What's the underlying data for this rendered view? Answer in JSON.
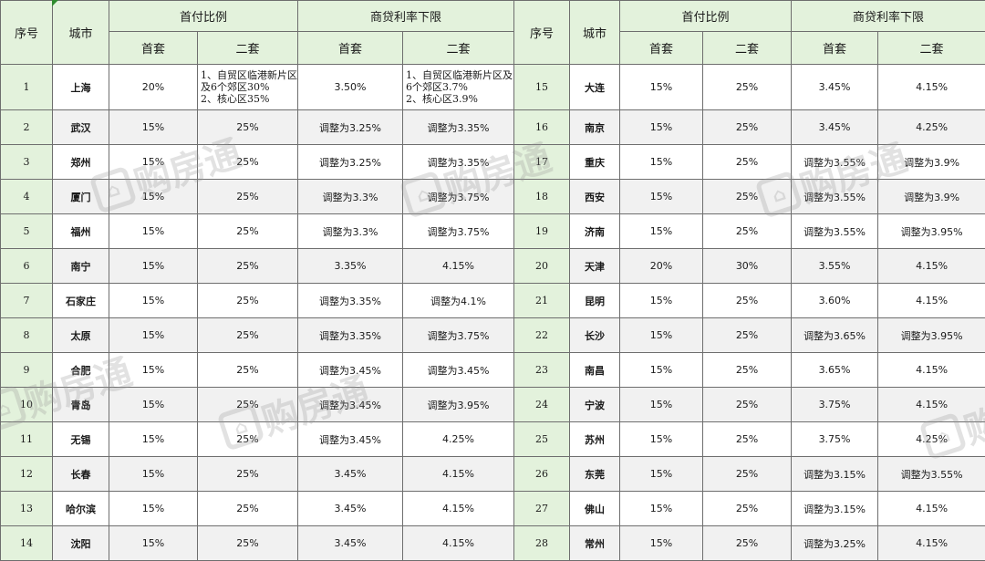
{
  "headers": {
    "seq": "序号",
    "city": "城市",
    "down_payment": "首付比例",
    "loan_rate": "商贷利率下限",
    "first": "首套",
    "second": "二套"
  },
  "left_rows": [
    {
      "n": "1",
      "city": "上海",
      "dp1": "20%",
      "dp2": "1、自贸区临港新片区及6个郊区30%\n2、核心区35%",
      "r1": "3.50%",
      "r2": "1、自贸区临港新片区及6个郊区3.7%\n2、核心区3.9%"
    },
    {
      "n": "2",
      "city": "武汉",
      "dp1": "15%",
      "dp2": "25%",
      "r1": "调整为3.25%",
      "r2": "调整为3.35%"
    },
    {
      "n": "3",
      "city": "郑州",
      "dp1": "15%",
      "dp2": "25%",
      "r1": "调整为3.25%",
      "r2": "调整为3.35%"
    },
    {
      "n": "4",
      "city": "厦门",
      "dp1": "15%",
      "dp2": "25%",
      "r1": "调整为3.3%",
      "r2": "调整为3.75%"
    },
    {
      "n": "5",
      "city": "福州",
      "dp1": "15%",
      "dp2": "25%",
      "r1": "调整为3.3%",
      "r2": "调整为3.75%"
    },
    {
      "n": "6",
      "city": "南宁",
      "dp1": "15%",
      "dp2": "25%",
      "r1": "3.35%",
      "r2": "4.15%"
    },
    {
      "n": "7",
      "city": "石家庄",
      "dp1": "15%",
      "dp2": "25%",
      "r1": "调整为3.35%",
      "r2": "调整为4.1%"
    },
    {
      "n": "8",
      "city": "太原",
      "dp1": "15%",
      "dp2": "25%",
      "r1": "调整为3.35%",
      "r2": "调整为3.75%"
    },
    {
      "n": "9",
      "city": "合肥",
      "dp1": "15%",
      "dp2": "25%",
      "r1": "调整为3.45%",
      "r2": "调整为3.45%"
    },
    {
      "n": "10",
      "city": "青岛",
      "dp1": "15%",
      "dp2": "25%",
      "r1": "调整为3.45%",
      "r2": "调整为3.95%"
    },
    {
      "n": "11",
      "city": "无锡",
      "dp1": "15%",
      "dp2": "25%",
      "r1": "调整为3.45%",
      "r2": "4.25%"
    },
    {
      "n": "12",
      "city": "长春",
      "dp1": "15%",
      "dp2": "25%",
      "r1": "3.45%",
      "r2": "4.15%"
    },
    {
      "n": "13",
      "city": "哈尔滨",
      "dp1": "15%",
      "dp2": "25%",
      "r1": "3.45%",
      "r2": "4.15%"
    },
    {
      "n": "14",
      "city": "沈阳",
      "dp1": "15%",
      "dp2": "25%",
      "r1": "3.45%",
      "r2": "4.15%"
    }
  ],
  "right_rows": [
    {
      "n": "15",
      "city": "大连",
      "dp1": "15%",
      "dp2": "25%",
      "r1": "3.45%",
      "r2": "4.15%"
    },
    {
      "n": "16",
      "city": "南京",
      "dp1": "15%",
      "dp2": "25%",
      "r1": "3.45%",
      "r2": "4.25%"
    },
    {
      "n": "17",
      "city": "重庆",
      "dp1": "15%",
      "dp2": "25%",
      "r1": "调整为3.55%",
      "r2": "调整为3.9%"
    },
    {
      "n": "18",
      "city": "西安",
      "dp1": "15%",
      "dp2": "25%",
      "r1": "调整为3.55%",
      "r2": "调整为3.9%"
    },
    {
      "n": "19",
      "city": "济南",
      "dp1": "15%",
      "dp2": "25%",
      "r1": "调整为3.55%",
      "r2": "调整为3.95%"
    },
    {
      "n": "20",
      "city": "天津",
      "dp1": "20%",
      "dp2": "30%",
      "r1": "3.55%",
      "r2": "4.15%"
    },
    {
      "n": "21",
      "city": "昆明",
      "dp1": "15%",
      "dp2": "25%",
      "r1": "3.60%",
      "r2": "4.15%"
    },
    {
      "n": "22",
      "city": "长沙",
      "dp1": "15%",
      "dp2": "25%",
      "r1": "调整为3.65%",
      "r2": "调整为3.95%"
    },
    {
      "n": "23",
      "city": "南昌",
      "dp1": "15%",
      "dp2": "25%",
      "r1": "3.65%",
      "r2": "4.15%"
    },
    {
      "n": "24",
      "city": "宁波",
      "dp1": "15%",
      "dp2": "25%",
      "r1": "3.75%",
      "r2": "4.15%"
    },
    {
      "n": "25",
      "city": "苏州",
      "dp1": "15%",
      "dp2": "25%",
      "r1": "3.75%",
      "r2": "4.25%"
    },
    {
      "n": "26",
      "city": "东莞",
      "dp1": "15%",
      "dp2": "25%",
      "r1": "调整为3.15%",
      "r2": "调整为3.55%"
    },
    {
      "n": "27",
      "city": "佛山",
      "dp1": "15%",
      "dp2": "25%",
      "r1": "调整为3.15%",
      "r2": "4.15%"
    },
    {
      "n": "28",
      "city": "常州",
      "dp1": "15%",
      "dp2": "25%",
      "r1": "调整为3.25%",
      "r2": "4.15%"
    }
  ],
  "watermark": {
    "text": "购房通",
    "logo_icon": "house-logo-icon"
  }
}
